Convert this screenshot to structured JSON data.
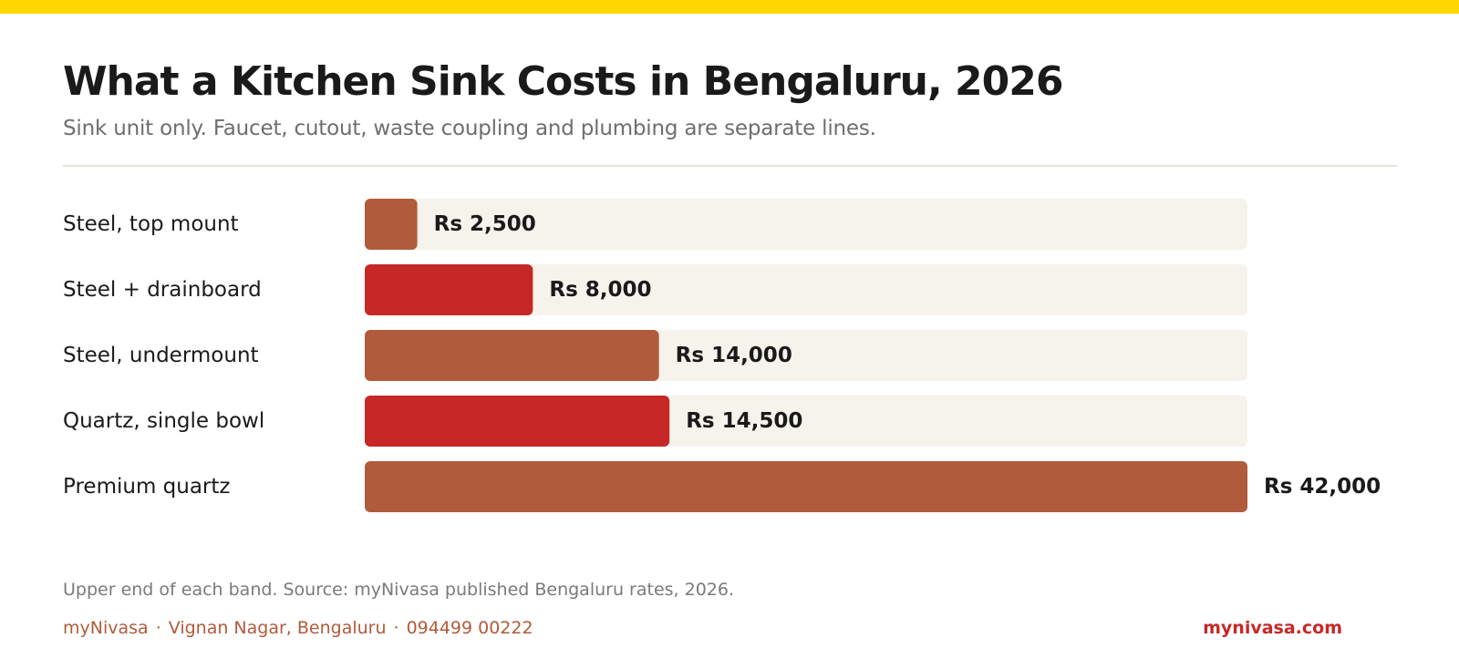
{
  "colors": {
    "accent_stripe": "#FFD600",
    "bar_rust": "#B05B3B",
    "bar_red": "#C62828",
    "track": "#F6F3EC",
    "footer_link": "#C62828"
  },
  "header": {
    "title": "What a Kitchen Sink Costs in Bengaluru, 2026",
    "subtitle": "Sink unit only. Faucet, cutout, waste coupling and plumbing are separate lines."
  },
  "chart_data": {
    "type": "bar",
    "orientation": "horizontal",
    "title": "What a Kitchen Sink Costs in Bengaluru, 2026",
    "subtitle": "Sink unit only. Faucet, cutout, waste coupling and plumbing are separate lines.",
    "categories": [
      "Steel, top mount",
      "Steel + drainboard",
      "Steel, undermount",
      "Quartz, single bowl",
      "Premium quartz"
    ],
    "values": [
      2500,
      8000,
      14000,
      14500,
      42000
    ],
    "value_labels": [
      "Rs 2,500",
      "Rs 8,000",
      "Rs 14,000",
      "Rs 14,500",
      "Rs 42,000"
    ],
    "bar_colors": [
      "#B05B3B",
      "#C62828",
      "#B05B3B",
      "#C62828",
      "#B05B3B"
    ],
    "xlim": [
      0,
      42000
    ],
    "grid": false,
    "legend": "none"
  },
  "footer": {
    "note": "Upper end of each band. Source: myNivasa published Bengaluru rates, 2026.",
    "brand": "myNivasa",
    "location": "Vignan Nagar, Bengaluru",
    "phone": "094499 00222",
    "separator": "·",
    "website": "mynivasa.com"
  }
}
